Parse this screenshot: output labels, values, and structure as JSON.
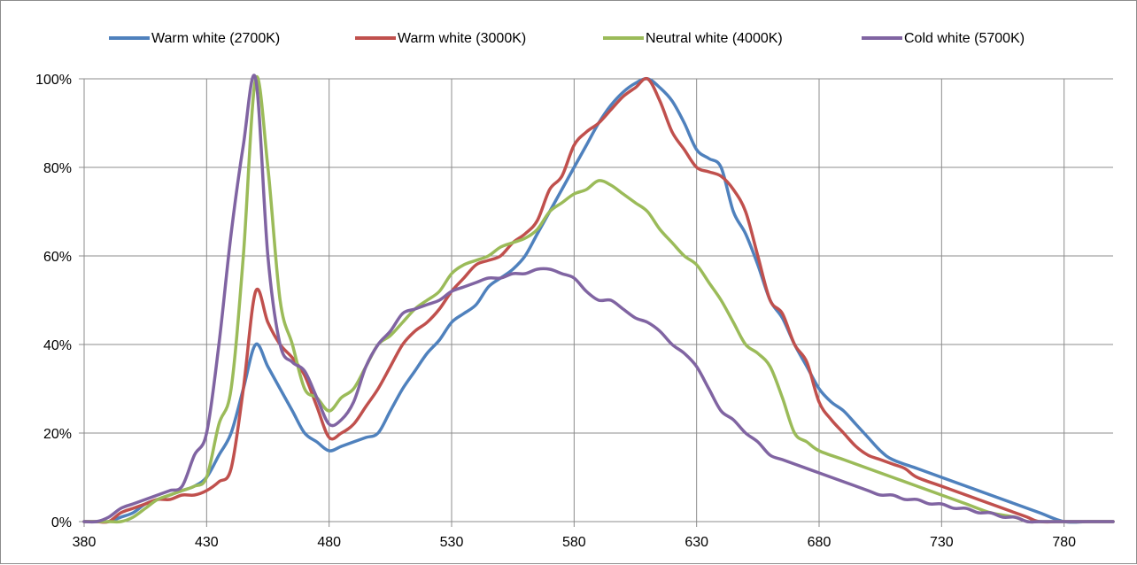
{
  "chart_data": {
    "type": "line",
    "title": "",
    "xlabel": "",
    "ylabel": "",
    "xlim": [
      380,
      800
    ],
    "ylim": [
      0,
      100
    ],
    "x_ticks": [
      380,
      430,
      480,
      530,
      580,
      630,
      680,
      730,
      780
    ],
    "y_ticks": [
      0,
      20,
      40,
      60,
      80,
      100
    ],
    "y_tick_labels": [
      "0%",
      "20%",
      "40%",
      "60%",
      "80%",
      "100%"
    ],
    "grid": true,
    "legend_position": "top",
    "series": [
      {
        "name": "Warm white (2700K)",
        "color": "#4f81bd",
        "points": [
          [
            380,
            0
          ],
          [
            385,
            0
          ],
          [
            390,
            0
          ],
          [
            395,
            1
          ],
          [
            400,
            2
          ],
          [
            405,
            4
          ],
          [
            410,
            5
          ],
          [
            415,
            6
          ],
          [
            420,
            7
          ],
          [
            425,
            8
          ],
          [
            430,
            10
          ],
          [
            435,
            15
          ],
          [
            440,
            20
          ],
          [
            445,
            30
          ],
          [
            450,
            40
          ],
          [
            455,
            35
          ],
          [
            460,
            30
          ],
          [
            465,
            25
          ],
          [
            470,
            20
          ],
          [
            475,
            18
          ],
          [
            480,
            16
          ],
          [
            485,
            17
          ],
          [
            490,
            18
          ],
          [
            495,
            19
          ],
          [
            500,
            20
          ],
          [
            505,
            25
          ],
          [
            510,
            30
          ],
          [
            515,
            34
          ],
          [
            520,
            38
          ],
          [
            525,
            41
          ],
          [
            530,
            45
          ],
          [
            535,
            47
          ],
          [
            540,
            49
          ],
          [
            545,
            53
          ],
          [
            550,
            55
          ],
          [
            555,
            57
          ],
          [
            560,
            60
          ],
          [
            565,
            65
          ],
          [
            570,
            70
          ],
          [
            575,
            75
          ],
          [
            580,
            80
          ],
          [
            585,
            85
          ],
          [
            590,
            90
          ],
          [
            595,
            94
          ],
          [
            600,
            97
          ],
          [
            605,
            99
          ],
          [
            610,
            100
          ],
          [
            615,
            98
          ],
          [
            620,
            95
          ],
          [
            625,
            90
          ],
          [
            630,
            84
          ],
          [
            635,
            82
          ],
          [
            640,
            80
          ],
          [
            645,
            70
          ],
          [
            650,
            65
          ],
          [
            655,
            58
          ],
          [
            660,
            50
          ],
          [
            665,
            46
          ],
          [
            670,
            40
          ],
          [
            675,
            35
          ],
          [
            680,
            30
          ],
          [
            685,
            27
          ],
          [
            690,
            25
          ],
          [
            695,
            22
          ],
          [
            700,
            19
          ],
          [
            705,
            16
          ],
          [
            710,
            14
          ],
          [
            720,
            12
          ],
          [
            730,
            10
          ],
          [
            740,
            8
          ],
          [
            750,
            6
          ],
          [
            760,
            4
          ],
          [
            770,
            2
          ],
          [
            780,
            0
          ],
          [
            790,
            0
          ],
          [
            800,
            0
          ]
        ]
      },
      {
        "name": "Warm white (3000K)",
        "color": "#c0504d",
        "points": [
          [
            380,
            0
          ],
          [
            385,
            0
          ],
          [
            390,
            0
          ],
          [
            395,
            2
          ],
          [
            400,
            3
          ],
          [
            405,
            4
          ],
          [
            410,
            5
          ],
          [
            415,
            5
          ],
          [
            420,
            6
          ],
          [
            425,
            6
          ],
          [
            430,
            7
          ],
          [
            435,
            9
          ],
          [
            440,
            12
          ],
          [
            445,
            30
          ],
          [
            450,
            52
          ],
          [
            455,
            45
          ],
          [
            460,
            40
          ],
          [
            465,
            37
          ],
          [
            470,
            33
          ],
          [
            475,
            26
          ],
          [
            480,
            19
          ],
          [
            485,
            20
          ],
          [
            490,
            22
          ],
          [
            495,
            26
          ],
          [
            500,
            30
          ],
          [
            505,
            35
          ],
          [
            510,
            40
          ],
          [
            515,
            43
          ],
          [
            520,
            45
          ],
          [
            525,
            48
          ],
          [
            530,
            52
          ],
          [
            535,
            55
          ],
          [
            540,
            58
          ],
          [
            545,
            59
          ],
          [
            550,
            60
          ],
          [
            555,
            63
          ],
          [
            560,
            65
          ],
          [
            565,
            68
          ],
          [
            570,
            75
          ],
          [
            575,
            78
          ],
          [
            580,
            85
          ],
          [
            585,
            88
          ],
          [
            590,
            90
          ],
          [
            595,
            93
          ],
          [
            600,
            96
          ],
          [
            605,
            98
          ],
          [
            610,
            100
          ],
          [
            615,
            95
          ],
          [
            620,
            88
          ],
          [
            625,
            84
          ],
          [
            630,
            80
          ],
          [
            635,
            79
          ],
          [
            640,
            78
          ],
          [
            645,
            75
          ],
          [
            650,
            70
          ],
          [
            655,
            60
          ],
          [
            660,
            50
          ],
          [
            665,
            47
          ],
          [
            670,
            40
          ],
          [
            675,
            36
          ],
          [
            680,
            27
          ],
          [
            685,
            23
          ],
          [
            690,
            20
          ],
          [
            695,
            17
          ],
          [
            700,
            15
          ],
          [
            705,
            14
          ],
          [
            710,
            13
          ],
          [
            715,
            12
          ],
          [
            720,
            10
          ],
          [
            730,
            8
          ],
          [
            740,
            6
          ],
          [
            750,
            4
          ],
          [
            760,
            2
          ],
          [
            765,
            1
          ],
          [
            770,
            0
          ],
          [
            780,
            0
          ],
          [
            790,
            0
          ],
          [
            800,
            0
          ]
        ]
      },
      {
        "name": "Neutral white (4000K)",
        "color": "#9bbb59",
        "points": [
          [
            380,
            0
          ],
          [
            385,
            0
          ],
          [
            390,
            0
          ],
          [
            395,
            0
          ],
          [
            400,
            1
          ],
          [
            405,
            3
          ],
          [
            410,
            5
          ],
          [
            415,
            6
          ],
          [
            420,
            7
          ],
          [
            425,
            8
          ],
          [
            430,
            10
          ],
          [
            435,
            22
          ],
          [
            440,
            30
          ],
          [
            445,
            60
          ],
          [
            450,
            100
          ],
          [
            455,
            80
          ],
          [
            460,
            50
          ],
          [
            465,
            40
          ],
          [
            470,
            30
          ],
          [
            475,
            28
          ],
          [
            480,
            25
          ],
          [
            485,
            28
          ],
          [
            490,
            30
          ],
          [
            495,
            35
          ],
          [
            500,
            40
          ],
          [
            505,
            42
          ],
          [
            510,
            45
          ],
          [
            515,
            48
          ],
          [
            520,
            50
          ],
          [
            525,
            52
          ],
          [
            530,
            56
          ],
          [
            535,
            58
          ],
          [
            540,
            59
          ],
          [
            545,
            60
          ],
          [
            550,
            62
          ],
          [
            555,
            63
          ],
          [
            560,
            64
          ],
          [
            565,
            66
          ],
          [
            570,
            70
          ],
          [
            575,
            72
          ],
          [
            580,
            74
          ],
          [
            585,
            75
          ],
          [
            590,
            77
          ],
          [
            595,
            76
          ],
          [
            600,
            74
          ],
          [
            605,
            72
          ],
          [
            610,
            70
          ],
          [
            615,
            66
          ],
          [
            620,
            63
          ],
          [
            625,
            60
          ],
          [
            630,
            58
          ],
          [
            635,
            54
          ],
          [
            640,
            50
          ],
          [
            645,
            45
          ],
          [
            650,
            40
          ],
          [
            655,
            38
          ],
          [
            660,
            35
          ],
          [
            665,
            28
          ],
          [
            670,
            20
          ],
          [
            675,
            18
          ],
          [
            680,
            16
          ],
          [
            690,
            14
          ],
          [
            700,
            12
          ],
          [
            710,
            10
          ],
          [
            720,
            8
          ],
          [
            730,
            6
          ],
          [
            740,
            4
          ],
          [
            750,
            2
          ],
          [
            760,
            1
          ],
          [
            765,
            0
          ],
          [
            770,
            0
          ],
          [
            780,
            0
          ],
          [
            790,
            0
          ],
          [
            800,
            0
          ]
        ]
      },
      {
        "name": "Cold white (5700K)",
        "color": "#8064a2",
        "points": [
          [
            380,
            0
          ],
          [
            385,
            0
          ],
          [
            390,
            1
          ],
          [
            395,
            3
          ],
          [
            400,
            4
          ],
          [
            405,
            5
          ],
          [
            410,
            6
          ],
          [
            415,
            7
          ],
          [
            420,
            8
          ],
          [
            425,
            15
          ],
          [
            430,
            20
          ],
          [
            435,
            40
          ],
          [
            440,
            65
          ],
          [
            445,
            85
          ],
          [
            450,
            100
          ],
          [
            455,
            60
          ],
          [
            460,
            40
          ],
          [
            465,
            36
          ],
          [
            470,
            34
          ],
          [
            475,
            28
          ],
          [
            480,
            22
          ],
          [
            485,
            23
          ],
          [
            490,
            27
          ],
          [
            495,
            35
          ],
          [
            500,
            40
          ],
          [
            505,
            43
          ],
          [
            510,
            47
          ],
          [
            515,
            48
          ],
          [
            520,
            49
          ],
          [
            525,
            50
          ],
          [
            530,
            52
          ],
          [
            535,
            53
          ],
          [
            540,
            54
          ],
          [
            545,
            55
          ],
          [
            550,
            55
          ],
          [
            555,
            56
          ],
          [
            560,
            56
          ],
          [
            565,
            57
          ],
          [
            570,
            57
          ],
          [
            575,
            56
          ],
          [
            580,
            55
          ],
          [
            585,
            52
          ],
          [
            590,
            50
          ],
          [
            595,
            50
          ],
          [
            600,
            48
          ],
          [
            605,
            46
          ],
          [
            610,
            45
          ],
          [
            615,
            43
          ],
          [
            620,
            40
          ],
          [
            625,
            38
          ],
          [
            630,
            35
          ],
          [
            635,
            30
          ],
          [
            640,
            25
          ],
          [
            645,
            23
          ],
          [
            650,
            20
          ],
          [
            655,
            18
          ],
          [
            660,
            15
          ],
          [
            665,
            14
          ],
          [
            670,
            13
          ],
          [
            680,
            11
          ],
          [
            690,
            9
          ],
          [
            700,
            7
          ],
          [
            705,
            6
          ],
          [
            710,
            6
          ],
          [
            715,
            5
          ],
          [
            720,
            5
          ],
          [
            725,
            4
          ],
          [
            730,
            4
          ],
          [
            735,
            3
          ],
          [
            740,
            3
          ],
          [
            745,
            2
          ],
          [
            750,
            2
          ],
          [
            755,
            1
          ],
          [
            760,
            1
          ],
          [
            765,
            0
          ],
          [
            770,
            0
          ],
          [
            780,
            0
          ],
          [
            790,
            0
          ],
          [
            800,
            0
          ]
        ]
      }
    ]
  }
}
